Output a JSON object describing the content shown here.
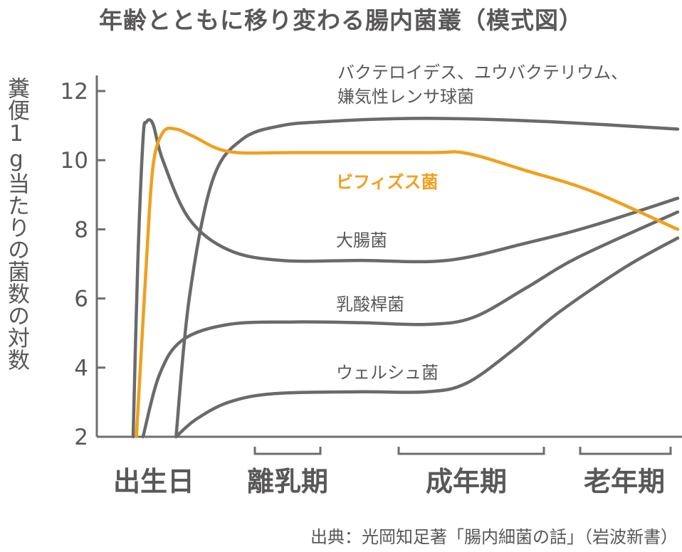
{
  "title": "年齢とともに移り変わる腸内菌叢（模式図）",
  "ylabel": "糞便1g当たりの菌数の対数",
  "source": "出典：光岡知足著「腸内細菌の話」（岩波新書）",
  "colors": {
    "axis": "#6e6e6e",
    "series": "#6a6a6a",
    "highlight": "#f0a01e",
    "text": "#595757"
  },
  "chart_data": {
    "type": "line",
    "ylim": [
      2,
      12
    ],
    "yticks": [
      "2",
      "4",
      "6",
      "8",
      "10",
      "12"
    ],
    "stages": [
      {
        "label": "出生日",
        "bracket": false
      },
      {
        "label": "離乳期",
        "bracket": true
      },
      {
        "label": "成年期",
        "bracket": true
      },
      {
        "label": "老年期",
        "bracket": true
      }
    ],
    "series": [
      {
        "name": "バクテロイデス、ユウバクテリウム、\n嫌気性レンサ球菌",
        "highlight": false,
        "points": [
          [
            1.2,
            2
          ],
          [
            1.4,
            6
          ],
          [
            1.75,
            9.4
          ],
          [
            2.2,
            10.6
          ],
          [
            2.8,
            11
          ],
          [
            3.5,
            11.12
          ],
          [
            4.5,
            11.2
          ],
          [
            5.5,
            11.2
          ],
          [
            7,
            11.1
          ],
          [
            8.8,
            10.9
          ]
        ]
      },
      {
        "name": "ビフィズス菌",
        "highlight": true,
        "points": [
          [
            0.6,
            2
          ],
          [
            0.75,
            7
          ],
          [
            0.85,
            9.8
          ],
          [
            1.0,
            10.8
          ],
          [
            1.2,
            10.9
          ],
          [
            1.45,
            10.7
          ],
          [
            2.0,
            10.25
          ],
          [
            3,
            10.22
          ],
          [
            5.0,
            10.22
          ],
          [
            5.6,
            10.2
          ],
          [
            6.5,
            9.7
          ],
          [
            7.5,
            9.1
          ],
          [
            8.8,
            8.0
          ]
        ]
      },
      {
        "name": "大腸菌",
        "highlight": false,
        "points": [
          [
            0.55,
            2
          ],
          [
            0.62,
            7
          ],
          [
            0.7,
            10.6
          ],
          [
            0.75,
            11.1
          ],
          [
            0.85,
            11.05
          ],
          [
            1.0,
            10.0
          ],
          [
            1.4,
            8.3
          ],
          [
            2.0,
            7.4
          ],
          [
            2.8,
            7.1
          ],
          [
            4.0,
            7.1
          ],
          [
            5.3,
            7.1
          ],
          [
            6.5,
            7.6
          ],
          [
            7.5,
            8.1
          ],
          [
            8.8,
            8.9
          ]
        ]
      },
      {
        "name": "乳酸桿菌",
        "highlight": false,
        "points": [
          [
            0.7,
            2
          ],
          [
            0.95,
            3.8
          ],
          [
            1.3,
            4.8
          ],
          [
            2.0,
            5.25
          ],
          [
            3.0,
            5.32
          ],
          [
            4,
            5.3
          ],
          [
            5.0,
            5.25
          ],
          [
            5.7,
            5.45
          ],
          [
            6.5,
            6.3
          ],
          [
            7.3,
            7.2
          ],
          [
            8.8,
            8.5
          ]
        ]
      },
      {
        "name": "ウェルシュ菌",
        "highlight": false,
        "points": [
          [
            1.2,
            2
          ],
          [
            1.5,
            2.5
          ],
          [
            2.0,
            3.0
          ],
          [
            2.7,
            3.25
          ],
          [
            4,
            3.3
          ],
          [
            5.0,
            3.3
          ],
          [
            5.6,
            3.55
          ],
          [
            6.3,
            4.5
          ],
          [
            7.0,
            5.6
          ],
          [
            8.0,
            6.9
          ],
          [
            8.8,
            7.75
          ]
        ]
      }
    ]
  }
}
